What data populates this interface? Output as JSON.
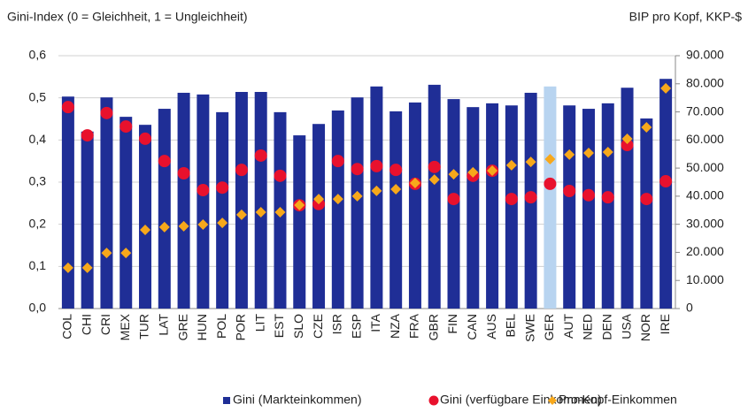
{
  "chart_data": {
    "type": "bar_dot",
    "y_axis_label": "Gini-Index (0 = Gleichheit, 1 = Ungleichheit)",
    "y2_axis_label": "BIP pro Kopf, KKP-$",
    "categories": [
      "COL",
      "CHI",
      "CRI",
      "MEX",
      "TUR",
      "LAT",
      "GRE",
      "HUN",
      "POL",
      "POR",
      "LIT",
      "EST",
      "SLO",
      "CZE",
      "ISR",
      "ESP",
      "ITA",
      "NZA",
      "FRA",
      "GBR",
      "FIN",
      "CAN",
      "AUS",
      "BEL",
      "SWE",
      "GER",
      "AUT",
      "NED",
      "DEN",
      "USA",
      "NOR",
      "IRE"
    ],
    "series": [
      {
        "name": "Gini (Markteinkommen)",
        "type": "bar",
        "color": "#1f2e96",
        "colors": [
          "#1f2e96",
          "#1f2e96",
          "#1f2e96",
          "#1f2e96",
          "#1f2e96",
          "#1f2e96",
          "#1f2e96",
          "#1f2e96",
          "#1f2e96",
          "#1f2e96",
          "#1f2e96",
          "#1f2e96",
          "#1f2e96",
          "#1f2e96",
          "#1f2e96",
          "#1f2e96",
          "#1f2e96",
          "#1f2e96",
          "#1f2e96",
          "#1f2e96",
          "#1f2e96",
          "#1f2e96",
          "#1f2e96",
          "#1f2e96",
          "#1f2e96",
          "#b8d4f0",
          "#1f2e96",
          "#1f2e96",
          "#1f2e96",
          "#1f2e96",
          "#1f2e96",
          "#1f2e96"
        ],
        "values": [
          0.503,
          0.42,
          0.501,
          0.455,
          0.436,
          0.474,
          0.512,
          0.508,
          0.466,
          0.514,
          0.514,
          0.466,
          0.411,
          0.438,
          0.47,
          0.501,
          0.527,
          0.468,
          0.489,
          0.531,
          0.497,
          0.478,
          0.487,
          0.482,
          0.512,
          0.527,
          0.482,
          0.474,
          0.487,
          0.524,
          0.451,
          0.545
        ]
      },
      {
        "name": "Gini (verfügbare Einkommen)",
        "type": "circle",
        "color": "#e8112d",
        "values": [
          0.478,
          0.411,
          0.464,
          0.432,
          0.403,
          0.35,
          0.321,
          0.281,
          0.287,
          0.329,
          0.363,
          0.315,
          0.245,
          0.248,
          0.35,
          0.331,
          0.338,
          0.329,
          0.296,
          0.336,
          0.26,
          0.315,
          0.327,
          0.26,
          0.264,
          0.296,
          0.279,
          0.269,
          0.264,
          0.388,
          0.26,
          0.302
        ]
      },
      {
        "name": "Pro-Kopf-Einkommen",
        "type": "diamond",
        "axis": "y2",
        "color": "#f7a81b",
        "values": [
          14500,
          14500,
          19800,
          19800,
          28000,
          29000,
          29300,
          29900,
          30500,
          33400,
          34300,
          34300,
          36800,
          39000,
          39000,
          40000,
          41900,
          42500,
          44700,
          45900,
          47800,
          48500,
          49100,
          51000,
          52200,
          53200,
          54800,
          55400,
          55700,
          60400,
          64500,
          78400
        ]
      }
    ],
    "ylim": [
      0,
      0.6
    ],
    "yticks": [
      {
        "value": 0,
        "label": "0,0"
      },
      {
        "value": 0.1,
        "label": "0,1"
      },
      {
        "value": 0.2,
        "label": "0,2"
      },
      {
        "value": 0.3,
        "label": "0,3"
      },
      {
        "value": 0.4,
        "label": "0,4"
      },
      {
        "value": 0.5,
        "label": "0,5"
      },
      {
        "value": 0.6,
        "label": "0,6"
      }
    ],
    "y2lim": [
      0,
      90000
    ],
    "y2ticks": [
      0,
      {
        "value": 10000,
        "label": "10.000"
      },
      {
        "value": 20000,
        "label": "20.000"
      },
      {
        "value": 30000,
        "label": "30.000"
      },
      {
        "value": 40000,
        "label": "40.000"
      },
      {
        "value": 50000,
        "label": "50.000"
      },
      {
        "value": 60000,
        "label": "60.000"
      },
      {
        "value": 70000,
        "label": "70.000"
      },
      {
        "value": 80000,
        "label": "80.000"
      },
      {
        "value": 90000,
        "label": "90.000"
      }
    ],
    "grid": true,
    "legend": "bottom"
  }
}
